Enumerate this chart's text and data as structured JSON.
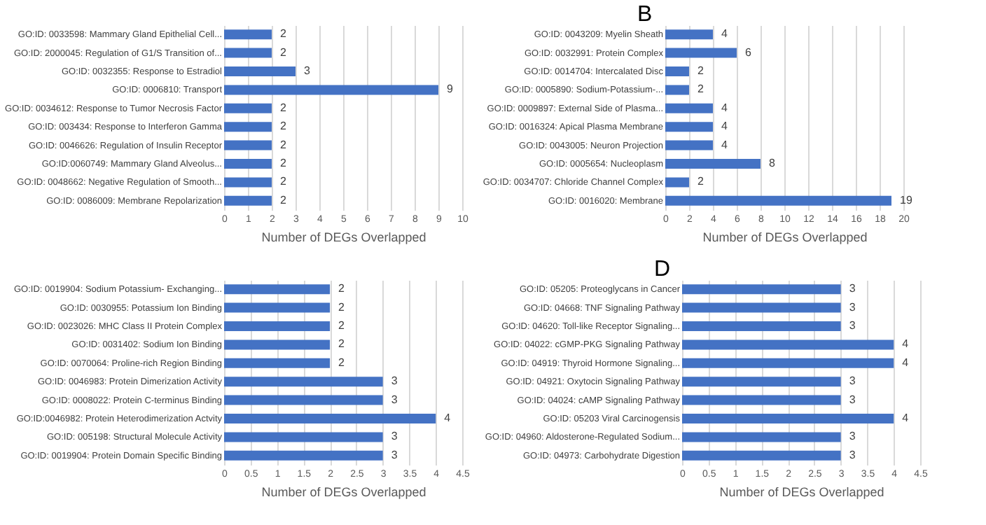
{
  "chart_data": [
    {
      "type": "bar",
      "orientation": "horizontal",
      "xlabel": "Number of DEGs Overlapped",
      "categories": [
        "GO:ID: 0033598: Mammary Gland Epithelial Cell...",
        "GO:ID: 2000045: Regulation of G1/S Transition of...",
        "GO:ID: 0032355: Response to Estradiol",
        "GO:ID: 0006810: Transport",
        "GO:ID: 0034612: Response to Tumor Necrosis Factor",
        "GO:ID: 003434: Response to Interferon Gamma",
        "GO:ID: 0046626: Regulation of Insulin Receptor",
        "GO:ID:0060749: Mammary Gland Alveolus...",
        "GO:ID: 0048662: Negative Regulation of Smooth...",
        "GO:ID: 0086009: Membrane Repolarization"
      ],
      "values": [
        2,
        2,
        3,
        9,
        2,
        2,
        2,
        2,
        2,
        2
      ],
      "color": "#4472c4",
      "xlim": [
        0,
        10
      ],
      "xticks": [
        0,
        1,
        2,
        3,
        4,
        5,
        6,
        7,
        8,
        9,
        10
      ],
      "grid": "x",
      "data_labels": true
    },
    {
      "type": "bar",
      "orientation": "horizontal",
      "title": "B",
      "xlabel": "Number of DEGs Overlapped",
      "categories": [
        "GO:ID: 0043209: Myelin Sheath",
        "GO:ID: 0032991: Protein Complex",
        "GO:ID: 0014704: Intercalated Disc",
        "GO:ID: 0005890: Sodium-Potassium-...",
        "GO:ID: 0009897: External Side of Plasma...",
        "GO:ID: 0016324: Apical Plasma Membrane",
        "GO:ID: 0043005: Neuron Projection",
        "GO:ID: 0005654: Nucleoplasm",
        "GO:ID: 0034707: Chloride Channel Complex",
        "GO:ID: 0016020: Membrane"
      ],
      "values": [
        4,
        6,
        2,
        2,
        4,
        4,
        4,
        8,
        2,
        19
      ],
      "color": "#4472c4",
      "xlim": [
        0,
        20
      ],
      "xticks": [
        0,
        2,
        4,
        6,
        8,
        10,
        12,
        14,
        16,
        18,
        20
      ],
      "grid": "x",
      "data_labels": true
    },
    {
      "type": "bar",
      "orientation": "horizontal",
      "xlabel": "Number of DEGs Overlapped",
      "categories": [
        "GO:ID: 0019904: Sodium Potassium- Exchanging...",
        "GO:ID: 0030955: Potassium Ion Binding",
        "GO:ID: 0023026: MHC Class II Protein Complex",
        "GO:ID: 0031402: Sodium Ion Binding",
        "GO:ID: 0070064: Proline-rich Region Binding",
        "GO:ID: 0046983: Protein Dimerization Activity",
        "GO:ID: 0008022: Protein C-terminus Binding",
        "GO:ID:0046982: Protein Heterodimerization Actvity",
        "GO:ID: 005198: Structural Molecule Activity",
        "GO:ID: 0019904: Protein Domain Specific Binding"
      ],
      "values": [
        2,
        2,
        2,
        2,
        2,
        3,
        3,
        4,
        3,
        3
      ],
      "color": "#4472c4",
      "xlim": [
        0,
        4.5
      ],
      "xticks": [
        0,
        0.5,
        1,
        1.5,
        2,
        2.5,
        3,
        3.5,
        4,
        4.5
      ],
      "grid": "x",
      "data_labels": true
    },
    {
      "type": "bar",
      "orientation": "horizontal",
      "title": "D",
      "xlabel": "Number of DEGs Overlapped",
      "categories": [
        "GO:ID: 05205: Proteoglycans in Cancer",
        "GO:ID: 04668: TNF Signaling Pathway",
        "GO:ID: 04620: Toll-like Receptor Signaling...",
        "GO:ID: 04022: cGMP-PKG Signaling Pathway",
        "GO:ID: 04919: Thyroid Hormone Signaling...",
        "GO:ID: 04921: Oxytocin Signaling Pathway",
        "GO:ID: 04024: cAMP Signaling Pathway",
        "GO:ID: 05203 Viral Carcinogensis",
        "GO:ID: 04960: Aldosterone-Regulated Sodium...",
        "GO:ID: 04973: Carbohydrate Digestion"
      ],
      "values": [
        3,
        3,
        3,
        4,
        4,
        3,
        3,
        4,
        3,
        3
      ],
      "color": "#4472c4",
      "xlim": [
        0,
        4.5
      ],
      "xticks": [
        0,
        0.5,
        1,
        1.5,
        2,
        2.5,
        3,
        3.5,
        4,
        4.5
      ],
      "grid": "x",
      "data_labels": true
    }
  ]
}
